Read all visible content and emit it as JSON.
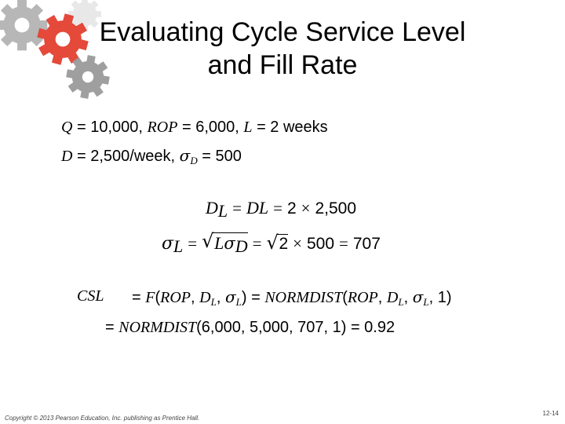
{
  "title": {
    "line1": "Evaluating Cycle Service Level",
    "line2": "and Fill Rate"
  },
  "given": {
    "line1": {
      "q_var": "Q",
      "q_val": " = 10,000, ",
      "rop_var": "ROP",
      "rop_val": " = 6,000, ",
      "l_var": "L",
      "l_val": " = 2 weeks"
    },
    "line2": {
      "d_var": "D",
      "d_val": " = 2,500/week, ",
      "sigma": "σ",
      "sigma_sub": "D",
      "sigma_val": " = 500"
    }
  },
  "eq1": {
    "lhs": "D",
    "lhs_sub": "L",
    "op1": "=",
    "mid": "DL",
    "op2": "=",
    "rhs_num": "2",
    "times": "×",
    "rhs_val": "2,500"
  },
  "eq2": {
    "lhs": "σ",
    "lhs_sub": "L",
    "op1": "=",
    "rad_var": "L",
    "rad_sigma": "σ",
    "rad_sub": "D",
    "op2": "=",
    "rad_num": "2",
    "times": "×",
    "val": "500",
    "op3": "=",
    "result": "707"
  },
  "csl": {
    "label": "CSL",
    "line1": {
      "eq": "= ",
      "f": "F",
      "open": "(",
      "rop": "ROP",
      "comma1": ", ",
      "d": "D",
      "d_sub": "L",
      "comma2": ", ",
      "sigma": "σ",
      "sigma_sub": "L",
      "close": ") = ",
      "fn": "NORMDIST",
      "open2": "(",
      "rop2": "ROP",
      "comma3": ", ",
      "d2": "D",
      "d2_sub": "L",
      "comma4": ", ",
      "sigma2": "σ",
      "sigma2_sub": "L",
      "tail": ", 1)"
    },
    "line2": {
      "eq": "= ",
      "fn": "NORMDIST",
      "args": "(6,000, 5,000, 707, 1) = 0.92"
    }
  },
  "footer": {
    "copyright": "Copyright © 2013 Pearson Education, Inc. publishing as Prentice Hall.",
    "page": "12-14"
  },
  "colors": {
    "gear_red": "#e23a2a",
    "gear_gray": "#9a9a9a"
  },
  "icons": [
    "gears-decoration-icon"
  ]
}
